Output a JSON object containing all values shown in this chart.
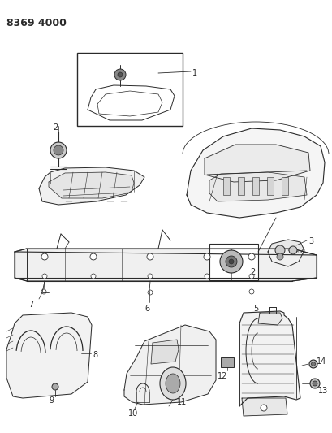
{
  "title": "8369 4000",
  "bg_color": "#ffffff",
  "line_color": "#2a2a2a",
  "fig_width": 4.1,
  "fig_height": 5.33,
  "dpi": 100
}
